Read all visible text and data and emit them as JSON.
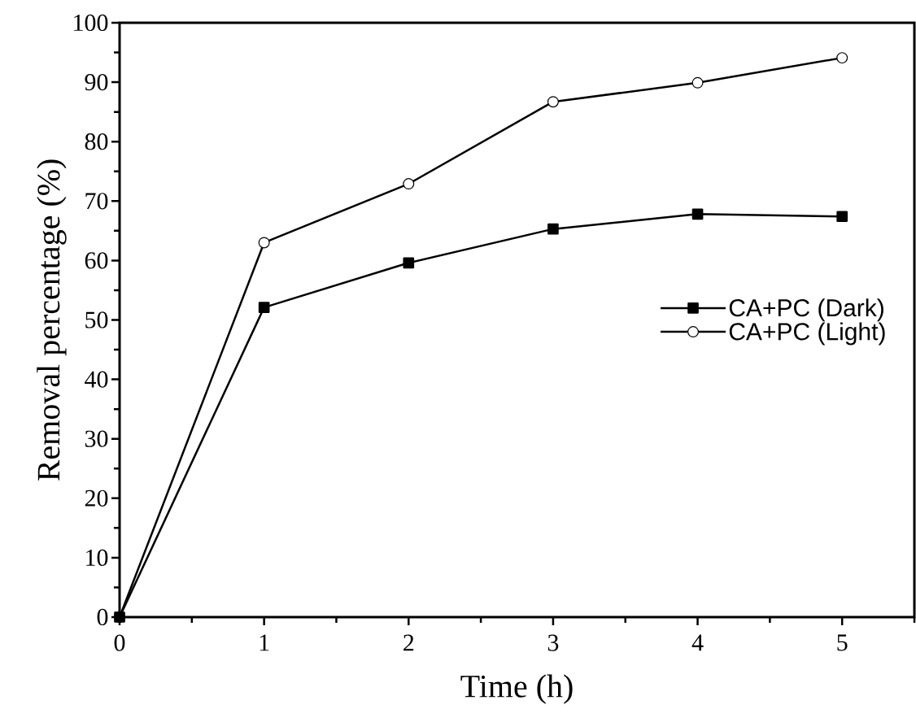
{
  "chart_data": {
    "type": "line",
    "xlabel": "Time (h)",
    "ylabel": "Removal percentage (%)",
    "x": [
      0,
      1,
      2,
      3,
      4,
      5
    ],
    "series": [
      {
        "name": "CA+PC (Light)",
        "color": "#000000",
        "marker": "circle",
        "values": [
          0,
          63.0,
          72.9,
          86.7,
          89.9,
          94.1
        ]
      },
      {
        "name": "CA+PC (Dark)",
        "color": "#000000",
        "marker": "square",
        "values": [
          0,
          52.1,
          59.6,
          65.3,
          67.8,
          67.4
        ]
      }
    ],
    "xlim": [
      0,
      5.5
    ],
    "ylim": [
      0,
      100
    ],
    "xticks": [
      0,
      {
        "value": 0.5,
        "label": null
      },
      1,
      {
        "value": 1.5,
        "label": null
      },
      2,
      {
        "value": 2.5,
        "label": null
      },
      3,
      {
        "value": 3.5,
        "label": null
      },
      4,
      {
        "value": 4.5,
        "label": null
      },
      5,
      {
        "value": 5.5,
        "label": null
      }
    ],
    "yticks": [
      0,
      {
        "value": 5,
        "label": null
      },
      10,
      {
        "value": 15,
        "label": null
      },
      20,
      {
        "value": 25,
        "label": null
      },
      30,
      {
        "value": 35,
        "label": null
      },
      40,
      {
        "value": 45,
        "label": null
      },
      50,
      {
        "value": 55,
        "label": null
      },
      60,
      {
        "value": 65,
        "label": null
      },
      70,
      {
        "value": 75,
        "label": null
      },
      80,
      {
        "value": 85,
        "label": null
      },
      90,
      {
        "value": 95,
        "label": null
      },
      100
    ],
    "legend": "right",
    "grid": false,
    "line_style": "solid"
  }
}
